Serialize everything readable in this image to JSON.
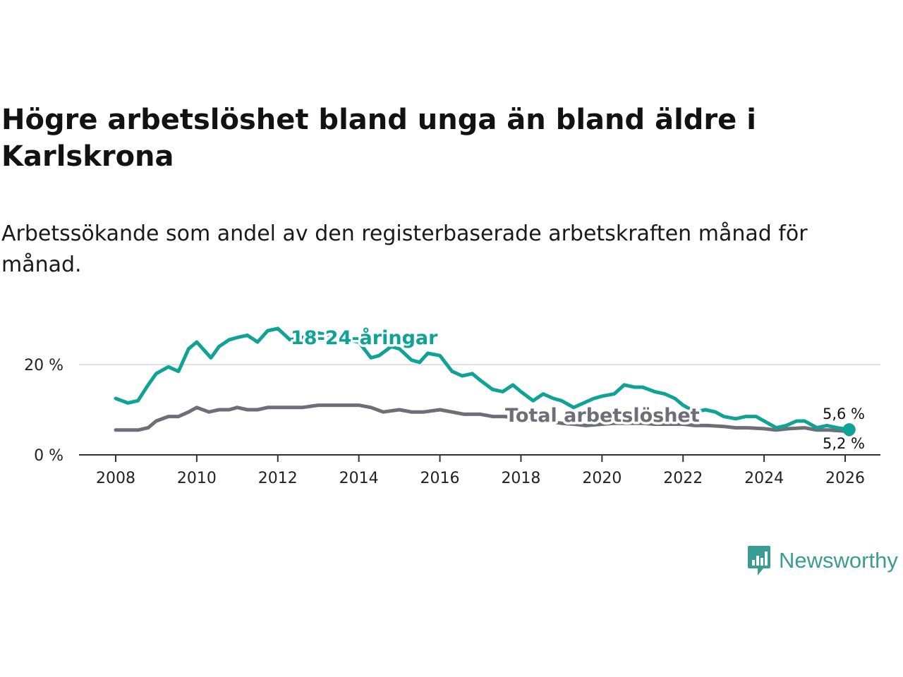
{
  "header": {
    "title": "Högre arbetslöshet bland unga än bland äldre i Karlskrona",
    "subtitle": "Arbetssökande som andel av den registerbaserade arbetskraften månad för månad."
  },
  "logo": {
    "name": "Newsworthy"
  },
  "colors": {
    "youth": "#0fa395",
    "total": "#6e6e78",
    "axis": "#333333",
    "grid": "#d9d9d9"
  },
  "chart_data": {
    "type": "line",
    "title": "Högre arbetslöshet bland unga än bland äldre i Karlskrona",
    "xlabel": "",
    "ylabel": "",
    "xlim": [
      2007.0,
      2027.0
    ],
    "ylim": [
      0,
      30
    ],
    "x_ticks": [
      2008,
      2010,
      2012,
      2014,
      2016,
      2018,
      2020,
      2022,
      2024,
      2026
    ],
    "x_tick_labels": [
      "2008",
      "2010",
      "2012",
      "2014",
      "2016",
      "2018",
      "2020",
      "2022",
      "2024",
      "2026"
    ],
    "y_ticks": [
      0,
      20
    ],
    "y_tick_labels": [
      "0 %",
      "20 %"
    ],
    "grid": true,
    "series": [
      {
        "name": "18-24-åringar",
        "label": "18-24-åringar",
        "end_label": "5,6 %",
        "x": [
          2008.0,
          2008.3,
          2008.55,
          2008.8,
          2009.0,
          2009.3,
          2009.55,
          2009.8,
          2010.0,
          2010.2,
          2010.35,
          2010.55,
          2010.8,
          2011.0,
          2011.25,
          2011.5,
          2011.75,
          2012.0,
          2012.3,
          2012.6,
          2013.0,
          2013.5,
          2014.0,
          2014.3,
          2014.5,
          2014.8,
          2015.0,
          2015.3,
          2015.5,
          2015.7,
          2016.0,
          2016.3,
          2016.55,
          2016.8,
          2017.0,
          2017.3,
          2017.55,
          2017.8,
          2018.0,
          2018.3,
          2018.55,
          2018.8,
          2019.0,
          2019.3,
          2019.55,
          2019.8,
          2020.0,
          2020.3,
          2020.55,
          2020.8,
          2021.0,
          2021.3,
          2021.55,
          2021.8,
          2022.0,
          2022.3,
          2022.55,
          2022.8,
          2023.0,
          2023.3,
          2023.55,
          2023.8,
          2024.0,
          2024.3,
          2024.55,
          2024.8,
          2025.0,
          2025.3,
          2025.55,
          2025.8,
          2026.1
        ],
        "values": [
          12.5,
          11.5,
          12.0,
          15.5,
          18.0,
          19.5,
          18.5,
          23.5,
          25.0,
          23.0,
          21.5,
          24.0,
          25.5,
          26.0,
          26.5,
          25.0,
          27.5,
          28.0,
          25.5,
          26.0,
          27.0,
          26.0,
          25.0,
          21.5,
          22.0,
          24.0,
          23.5,
          21.0,
          20.5,
          22.5,
          22.0,
          18.5,
          17.5,
          18.0,
          16.5,
          14.5,
          14.0,
          15.5,
          14.0,
          12.0,
          13.5,
          12.5,
          12.0,
          10.5,
          11.5,
          12.5,
          13.0,
          13.5,
          15.5,
          15.0,
          15.0,
          14.0,
          13.5,
          12.5,
          11.0,
          9.5,
          10.0,
          9.5,
          8.5,
          8.0,
          8.5,
          8.5,
          7.5,
          6.0,
          6.5,
          7.5,
          7.5,
          6.0,
          6.5,
          6.0,
          5.6
        ]
      },
      {
        "name": "Total arbetslöshet",
        "label": "Total arbetslöshet",
        "end_label": "5,2 %",
        "x": [
          2008.0,
          2008.3,
          2008.55,
          2008.8,
          2009.0,
          2009.3,
          2009.55,
          2009.8,
          2010.0,
          2010.3,
          2010.55,
          2010.8,
          2011.0,
          2011.25,
          2011.5,
          2011.75,
          2012.0,
          2012.3,
          2012.6,
          2013.0,
          2013.3,
          2013.6,
          2014.0,
          2014.3,
          2014.6,
          2015.0,
          2015.3,
          2015.6,
          2016.0,
          2016.3,
          2016.6,
          2017.0,
          2017.3,
          2017.6,
          2018.0,
          2018.3,
          2018.6,
          2019.0,
          2019.3,
          2019.6,
          2020.0,
          2020.3,
          2020.6,
          2021.0,
          2021.3,
          2021.6,
          2022.0,
          2022.3,
          2022.6,
          2023.0,
          2023.3,
          2023.6,
          2024.0,
          2024.3,
          2024.6,
          2025.0,
          2025.3,
          2025.6,
          2026.1
        ],
        "values": [
          5.5,
          5.5,
          5.5,
          6.0,
          7.5,
          8.5,
          8.5,
          9.5,
          10.5,
          9.5,
          10.0,
          10.0,
          10.5,
          10.0,
          10.0,
          10.5,
          10.5,
          10.5,
          10.5,
          11.0,
          11.0,
          11.0,
          11.0,
          10.5,
          9.5,
          10.0,
          9.5,
          9.5,
          10.0,
          9.5,
          9.0,
          9.0,
          8.5,
          8.5,
          8.0,
          7.5,
          7.5,
          7.0,
          6.8,
          6.5,
          6.8,
          7.0,
          7.0,
          7.0,
          6.8,
          6.8,
          6.8,
          6.5,
          6.5,
          6.3,
          6.0,
          6.0,
          5.8,
          5.5,
          5.8,
          6.0,
          5.5,
          5.5,
          5.2
        ]
      }
    ]
  }
}
